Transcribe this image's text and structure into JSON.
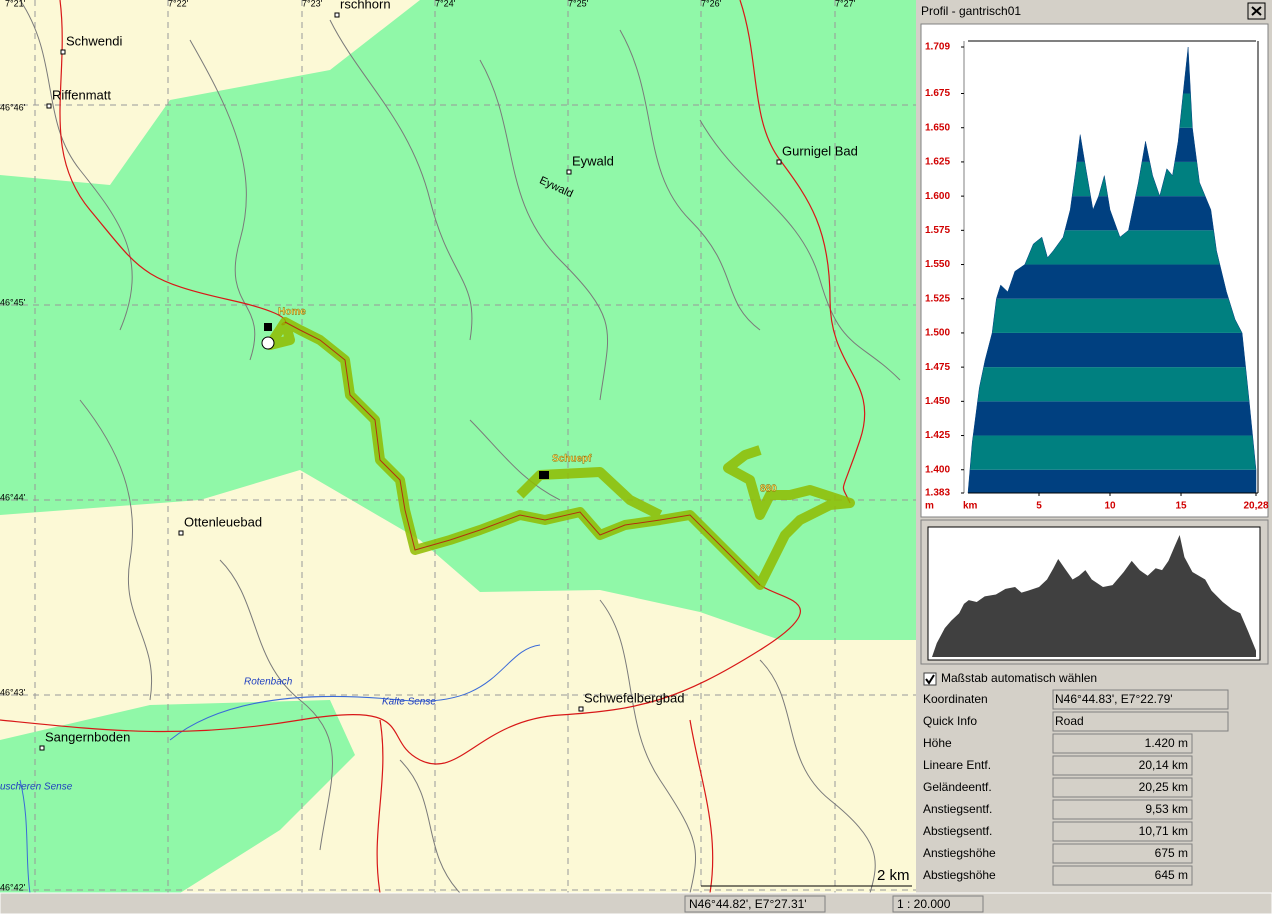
{
  "map": {
    "labels": [
      "7°21'",
      "7°22'",
      "7°23'",
      "rschhorn",
      "7°24'",
      "7°25'",
      "7°26'",
      "7°27'",
      "Schwendi",
      "Riffenmatt",
      "46°46'",
      "Eywald",
      "Eywald",
      "Gurnigel Bad",
      "46°45'",
      "Home",
      "Schuepf",
      "880",
      "46°44'",
      "Ottenleuebad",
      "Rotenbach",
      "Kalte Sense",
      "Schwefelbergbad",
      "46°43'",
      "Sangernboden",
      "uscheren Sense",
      "46°42'",
      "2 km"
    ]
  },
  "window": {
    "title": "Profil - gantrisch01"
  },
  "chart_data": {
    "type": "area",
    "x_label": "km",
    "y_label": "m",
    "x": [
      0,
      0.3,
      0.8,
      1.2,
      1.7,
      2,
      2.3,
      2.8,
      3.3,
      4,
      4.6,
      5.2,
      5.6,
      6,
      6.7,
      7.2,
      7.6,
      7.9,
      8.3,
      8.8,
      9.2,
      9.6,
      10,
      10.7,
      11.3,
      12,
      12.5,
      13,
      13.5,
      14,
      14.4,
      14.8,
      15.2,
      15.5,
      15.8,
      16.3,
      17.1,
      17.5,
      18.2,
      18.8,
      19.3,
      19.8,
      20.28
    ],
    "values": [
      1383,
      1420,
      1460,
      1480,
      1500,
      1525,
      1535,
      1530,
      1545,
      1550,
      1565,
      1570,
      1555,
      1560,
      1570,
      1590,
      1620,
      1645,
      1620,
      1590,
      1600,
      1615,
      1590,
      1570,
      1575,
      1610,
      1640,
      1615,
      1600,
      1620,
      1615,
      1640,
      1680,
      1709,
      1650,
      1610,
      1590,
      1560,
      1530,
      1510,
      1500,
      1450,
      1400
    ],
    "xlim": [
      0,
      20.28
    ],
    "ylim": [
      1383,
      1709
    ],
    "xticks": [
      5,
      10,
      15,
      {
        "value": 20.28,
        "label": "20,28"
      }
    ],
    "yticks": [
      {
        "value": 1383,
        "label": "1.383"
      },
      {
        "value": 1400,
        "label": "1.400"
      },
      {
        "value": 1425,
        "label": "1.425"
      },
      {
        "value": 1450,
        "label": "1.450"
      },
      {
        "value": 1475,
        "label": "1.475"
      },
      {
        "value": 1500,
        "label": "1.500"
      },
      {
        "value": 1525,
        "label": "1.525"
      },
      {
        "value": 1550,
        "label": "1.550"
      },
      {
        "value": 1575,
        "label": "1.575"
      },
      {
        "value": 1600,
        "label": "1.600"
      },
      {
        "value": 1625,
        "label": "1.625"
      },
      {
        "value": 1650,
        "label": "1.650"
      },
      {
        "value": 1675,
        "label": "1.675"
      },
      {
        "value": 1709,
        "label": "1.709"
      }
    ],
    "band_colors": [
      "#004080",
      "#008080"
    ],
    "overview_color": "#404040"
  },
  "options": {
    "checkbox_label": "Maßstab automatisch wählen",
    "checked": true
  },
  "info": {
    "rows": [
      [
        "Koordinaten",
        "N46°44.83', E7°22.79'"
      ],
      [
        "Quick Info",
        "Road"
      ],
      [
        "Höhe",
        "1.420 m"
      ],
      [
        "Lineare Entf.",
        "20,14 km"
      ],
      [
        "Geländeentf.",
        "20,25 km"
      ],
      [
        "Anstiegsentf.",
        "9,53 km"
      ],
      [
        "Abstiegsentf.",
        "10,71 km"
      ],
      [
        "Anstiegshöhe",
        "675 m"
      ],
      [
        "Abstiegshöhe",
        "645 m"
      ]
    ]
  },
  "status": {
    "coords": "N46°44.82', E7°27.31'",
    "scale": "1 : 20.000"
  }
}
